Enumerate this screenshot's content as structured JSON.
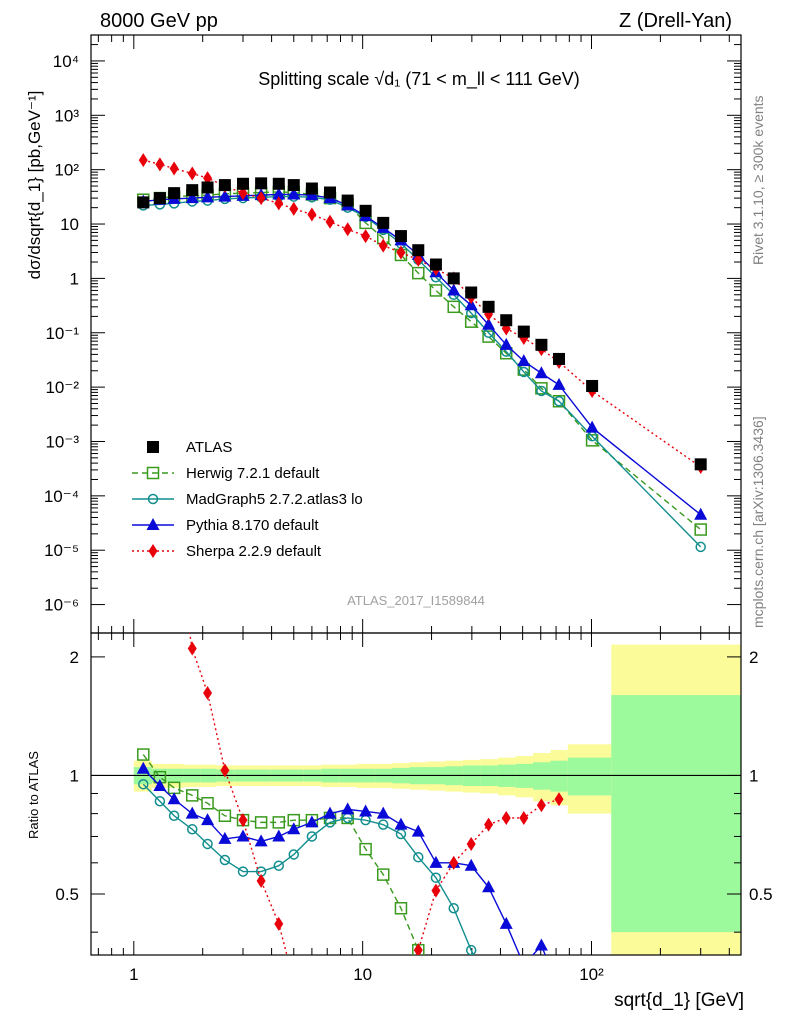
{
  "header": {
    "left": "8000 GeV pp",
    "right": "Z (Drell-Yan)"
  },
  "side_text": {
    "right_top": "Rivet 3.1.10, ≥ 300k events",
    "right_bottom": "mcplots.cern.ch [arXiv:1306.3436]"
  },
  "watermark": "ATLAS_2017_I1589844",
  "colors": {
    "ATLAS": "#000000",
    "Herwig": "#3a9a1e",
    "MadGraph": "#128e8e",
    "Pythia": "#0a0ad8",
    "Sherpa": "#e8000b",
    "band_inner": "#9cf99c",
    "band_outer": "#fbfb99"
  },
  "chart_data": [
    {
      "panel": "main",
      "type": "line",
      "title": "Splitting scale √d₁ (71 < m_ll < 111 GeV)",
      "ylabel": "dσ/dsqrt{d_1} [pb,GeV⁻¹]",
      "xlabel": "",
      "xscale": "log",
      "yscale": "log",
      "xlim": [
        0.65,
        450
      ],
      "ylim": [
        3e-07,
        30000.0
      ],
      "y_ticks": [
        "10⁴",
        "10³",
        "10²",
        "10",
        "1",
        "10⁻¹",
        "10⁻²",
        "10⁻³",
        "10⁻⁴",
        "10⁻⁵",
        "10⁻⁶"
      ],
      "legend_position": "lower-left",
      "series": [
        {
          "name": "ATLAS",
          "style": "square",
          "x": [
            1.1,
            1.3,
            1.5,
            1.8,
            2.1,
            2.5,
            3.0,
            3.6,
            4.3,
            5.0,
            6.0,
            7.2,
            8.6,
            10.3,
            12.3,
            14.7,
            17.5,
            20.9,
            25.0,
            29.8,
            35.5,
            42.4,
            50.6,
            60.4,
            72.1,
            100.6,
            300
          ],
          "y": [
            25,
            30,
            37,
            42,
            47,
            52,
            55,
            56,
            55,
            52,
            45,
            38,
            27,
            17.5,
            10.5,
            6,
            3.3,
            1.8,
            1.0,
            0.55,
            0.3,
            0.17,
            0.105,
            0.06,
            0.033,
            0.0105,
            0.00038
          ]
        },
        {
          "name": "Herwig 7.2.1 default",
          "style": "open-square-dashed",
          "x": [
            1.1,
            1.3,
            1.5,
            1.8,
            2.1,
            2.5,
            3.0,
            3.6,
            4.3,
            5.0,
            6.0,
            7.2,
            8.6,
            10.3,
            12.3,
            14.7,
            17.5,
            20.9,
            25.0,
            29.8,
            35.5,
            42.4,
            50.6,
            60.4,
            72.1,
            100.6,
            300
          ],
          "y": [
            28,
            30,
            32,
            33,
            34,
            36,
            37,
            38,
            39,
            38,
            35,
            30,
            23,
            10.5,
            5.5,
            2.7,
            1.25,
            0.6,
            0.3,
            0.16,
            0.085,
            0.042,
            0.021,
            0.0095,
            0.0055,
            0.00105,
            2.4e-05
          ]
        },
        {
          "name": "MadGraph5 2.7.2.atlas3 lo",
          "style": "open-circle",
          "x": [
            1.1,
            1.3,
            1.5,
            1.8,
            2.1,
            2.5,
            3.0,
            3.6,
            4.3,
            5.0,
            6.0,
            7.2,
            8.6,
            10.3,
            12.3,
            14.7,
            17.5,
            20.9,
            25.0,
            29.8,
            35.5,
            42.4,
            50.6,
            60.4,
            72.1,
            100.6,
            300
          ],
          "y": [
            22,
            23,
            24,
            26,
            27,
            29,
            30,
            31,
            32,
            32,
            31,
            28,
            20,
            13.5,
            7.8,
            4.4,
            2.2,
            1.05,
            0.5,
            0.23,
            0.1,
            0.045,
            0.019,
            0.0085,
            0.0055,
            0.00125,
            1.15e-05
          ]
        },
        {
          "name": "Pythia 8.170 default",
          "style": "triangle",
          "x": [
            1.1,
            1.3,
            1.5,
            1.8,
            2.1,
            2.5,
            3.0,
            3.6,
            4.3,
            5.0,
            6.0,
            7.2,
            8.6,
            10.3,
            12.3,
            14.7,
            17.5,
            20.9,
            25.0,
            29.8,
            35.5,
            42.4,
            50.6,
            60.4,
            72.1,
            100.6,
            300
          ],
          "y": [
            26,
            28,
            29,
            30,
            31,
            32,
            33,
            34,
            35,
            35,
            34,
            30,
            22,
            14,
            8.5,
            5,
            2.7,
            1.3,
            0.6,
            0.32,
            0.14,
            0.06,
            0.03,
            0.018,
            0.011,
            0.0018,
            4.5e-05
          ]
        },
        {
          "name": "Sherpa 2.2.9 default",
          "style": "diamond-dotted",
          "x": [
            1.1,
            1.3,
            1.5,
            1.8,
            2.1,
            2.5,
            3.0,
            3.6,
            4.3,
            5.0,
            6.0,
            7.2,
            8.6,
            10.3,
            12.3,
            14.7,
            17.5,
            20.9,
            25.0,
            29.8,
            35.5,
            42.4,
            50.6,
            60.4,
            72.1,
            100.6,
            300
          ],
          "y": [
            150,
            125,
            105,
            85,
            70,
            50,
            37,
            30,
            24,
            19,
            15,
            11,
            8,
            6,
            4,
            3,
            2.2,
            1.5,
            1.0,
            0.45,
            0.22,
            0.12,
            0.08,
            0.05,
            0.029,
            0.0085,
            0.00034
          ]
        }
      ]
    },
    {
      "panel": "ratio",
      "type": "line",
      "xlabel": "sqrt{d_1} [GeV]",
      "ylabel": "Ratio to ATLAS",
      "xscale": "log",
      "yscale": "log",
      "xlim": [
        0.65,
        450
      ],
      "ylim": [
        0.35,
        2.3
      ],
      "x_ticks": [
        "1",
        "10",
        "10²"
      ],
      "y_ticks": [
        "2",
        "1",
        "0.5"
      ],
      "series": [
        {
          "name": "Herwig 7.2.1 default",
          "x": [
            1.1,
            1.3,
            1.5,
            1.8,
            2.1,
            2.5,
            3.0,
            3.6,
            4.3,
            5.0,
            6.0,
            7.2,
            8.6,
            10.3,
            12.3,
            14.7,
            17.5
          ],
          "y": [
            1.13,
            0.99,
            0.93,
            0.89,
            0.85,
            0.79,
            0.77,
            0.76,
            0.76,
            0.77,
            0.77,
            0.78,
            0.78,
            0.65,
            0.56,
            0.46,
            0.36
          ]
        },
        {
          "name": "MadGraph5 2.7.2.atlas3 lo",
          "x": [
            1.1,
            1.3,
            1.5,
            1.8,
            2.1,
            2.5,
            3.0,
            3.6,
            4.3,
            5.0,
            6.0,
            7.2,
            8.6,
            10.3,
            12.3,
            14.7,
            17.5,
            20.9,
            25.0,
            29.8
          ],
          "y": [
            0.95,
            0.86,
            0.79,
            0.73,
            0.67,
            0.61,
            0.57,
            0.57,
            0.59,
            0.63,
            0.7,
            0.76,
            0.78,
            0.77,
            0.75,
            0.71,
            0.62,
            0.55,
            0.46,
            0.36
          ]
        },
        {
          "name": "Pythia 8.170 default",
          "x": [
            1.1,
            1.3,
            1.5,
            1.8,
            2.1,
            2.5,
            3.0,
            3.6,
            4.3,
            5.0,
            6.0,
            7.2,
            8.6,
            10.3,
            12.3,
            14.7,
            17.5,
            20.9,
            25.0,
            29.8,
            35.5,
            42.4,
            50.6,
            60.4
          ],
          "y": [
            1.04,
            0.94,
            0.87,
            0.8,
            0.77,
            0.69,
            0.7,
            0.68,
            0.7,
            0.73,
            0.76,
            0.8,
            0.82,
            0.81,
            0.8,
            0.75,
            0.72,
            0.6,
            0.6,
            0.59,
            0.52,
            0.42,
            0.33,
            0.37
          ]
        },
        {
          "name": "Sherpa 2.2.9 default",
          "x": [
            1.8,
            2.1,
            2.5,
            3.0,
            3.6,
            4.3,
            17.5,
            20.9,
            25.0,
            29.8,
            35.5,
            42.4,
            50.6,
            60.4,
            72.1
          ],
          "y": [
            2.1,
            1.62,
            1.03,
            0.77,
            0.54,
            0.42,
            0.36,
            0.51,
            0.6,
            0.67,
            0.75,
            0.78,
            0.78,
            0.84,
            0.87
          ]
        }
      ]
    }
  ]
}
